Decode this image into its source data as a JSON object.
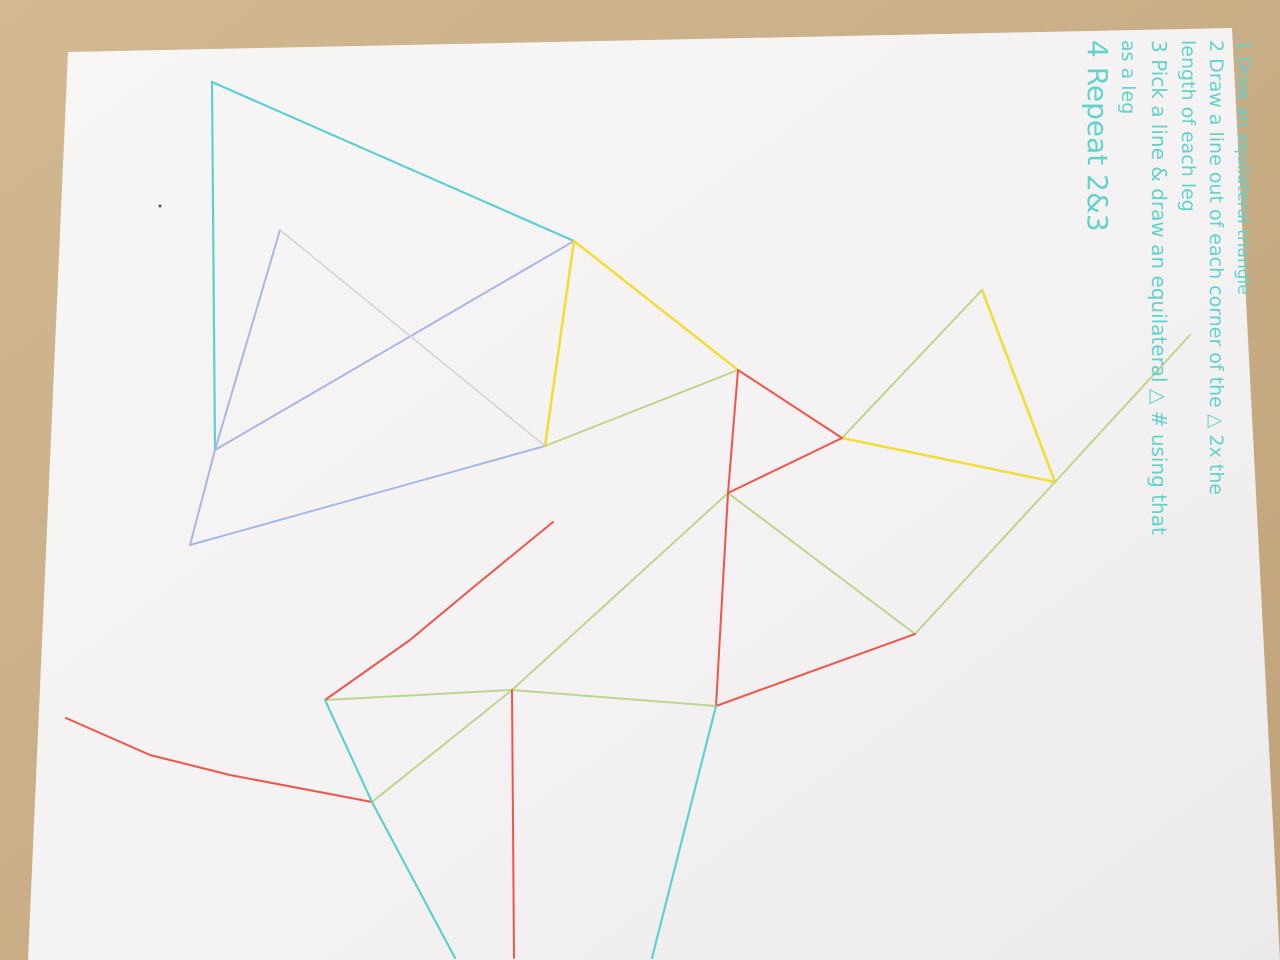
{
  "photo": {
    "subject": "hand-drawn colored-pencil geometric sketch on paper",
    "table_color": "#c7ad86",
    "paper_color": "#f6f4f3"
  },
  "instructions": {
    "color": "#62d3cb",
    "lines": [
      "1 Draw an equilateral triangle",
      "2 Draw a line out of each corner of the △ 2x the",
      "length of each leg",
      "3 Pick a line & draw an equilateral △ # using that",
      "as a leg",
      "4 Repeat 2&3"
    ]
  },
  "pencil_colors": {
    "cyan": "#5fd0d0",
    "blue": "#a7b6e6",
    "yellow": "#f2dd3c",
    "green": "#b9d48a",
    "red": "#f0554a"
  }
}
